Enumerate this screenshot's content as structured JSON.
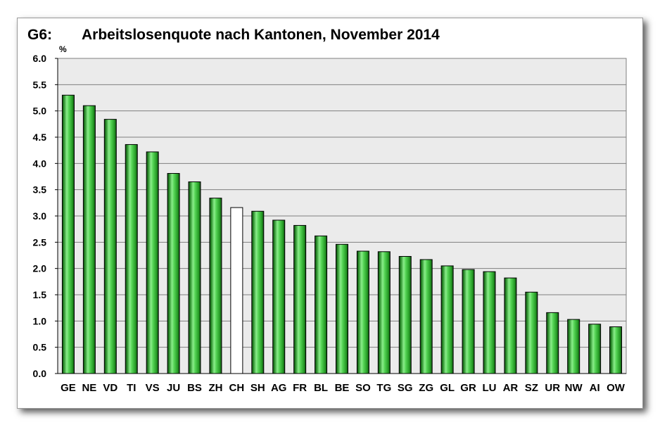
{
  "chart_data": {
    "type": "bar",
    "label": "G6:",
    "title": "Arbeitslosenquote nach Kantonen, November 2014",
    "ylabel": "%",
    "xlabel": "",
    "ylim": [
      0,
      6
    ],
    "ytick_step": 0.5,
    "yticks": [
      "0.0",
      "0.5",
      "1.0",
      "1.5",
      "2.0",
      "2.5",
      "3.0",
      "3.5",
      "4.0",
      "4.5",
      "5.0",
      "5.5",
      "6.0"
    ],
    "grid": true,
    "categories": [
      "GE",
      "NE",
      "VD",
      "TI",
      "VS",
      "JU",
      "BS",
      "ZH",
      "CH",
      "SH",
      "AG",
      "FR",
      "BL",
      "BE",
      "SO",
      "TG",
      "SG",
      "ZG",
      "GL",
      "GR",
      "LU",
      "AR",
      "SZ",
      "UR",
      "NW",
      "AI",
      "OW"
    ],
    "values": [
      5.3,
      5.1,
      4.84,
      4.36,
      4.22,
      3.81,
      3.65,
      3.34,
      3.16,
      3.09,
      2.92,
      2.82,
      2.62,
      2.46,
      2.33,
      2.32,
      2.23,
      2.17,
      2.05,
      1.98,
      1.94,
      1.82,
      1.55,
      1.16,
      1.03,
      0.94,
      0.89
    ],
    "highlight_category": "CH",
    "colors": {
      "bar": "#33cc33",
      "bar_highlight": "#ffffff",
      "plot_background": "#ebebeb",
      "gridline": "#7f7f7f"
    }
  }
}
